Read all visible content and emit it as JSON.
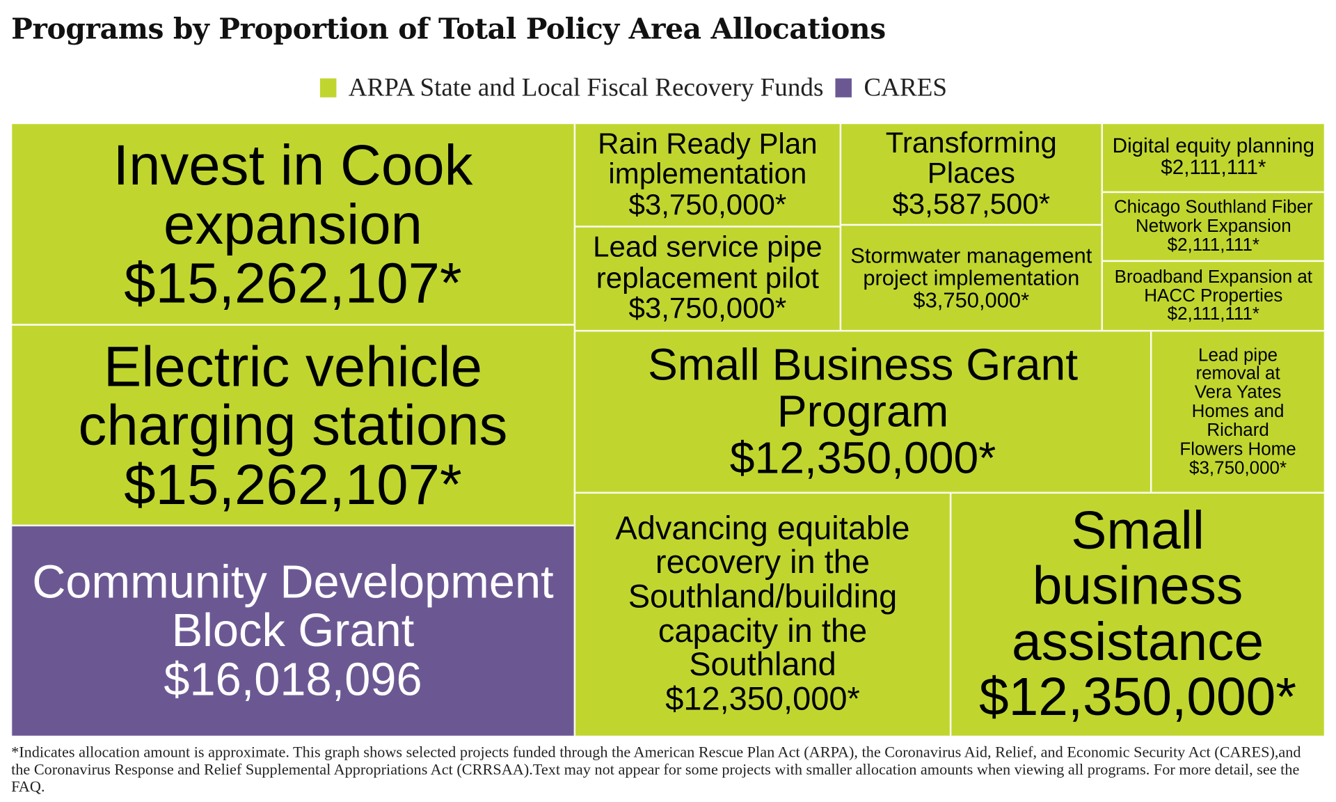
{
  "title": "Programs by Proportion of Total Policy Area Allocations",
  "legend": [
    {
      "label": "ARPA State and Local Fiscal Recovery Funds",
      "color": "#c0d62f"
    },
    {
      "label": "CARES",
      "color": "#6b5893"
    }
  ],
  "chart_data": {
    "type": "treemap",
    "title": "Programs by Proportion of Total Policy Area Allocations",
    "series": [
      {
        "name": "ARPA State and Local Fiscal Recovery Funds",
        "color": "#c0d62f"
      },
      {
        "name": "CARES",
        "color": "#6b5893"
      }
    ],
    "items": [
      {
        "label": "Invest in Cook expansion",
        "amount": "$15,262,107*",
        "value": 15262107,
        "series": "ARPA State and Local Fiscal Recovery Funds"
      },
      {
        "label": "Electric vehicle charging stations",
        "amount": "$15,262,107*",
        "value": 15262107,
        "series": "ARPA State and Local Fiscal Recovery Funds"
      },
      {
        "label": "Community Development Block Grant",
        "amount": "$16,018,096",
        "value": 16018096,
        "series": "CARES"
      },
      {
        "label": "Rain Ready Plan implementation",
        "amount": "$3,750,000*",
        "value": 3750000,
        "series": "ARPA State and Local Fiscal Recovery Funds"
      },
      {
        "label": "Lead service pipe replacement pilot",
        "amount": "$3,750,000*",
        "value": 3750000,
        "series": "ARPA State and Local Fiscal Recovery Funds"
      },
      {
        "label": "Transforming Places",
        "amount": "$3,587,500*",
        "value": 3587500,
        "series": "ARPA State and Local Fiscal Recovery Funds"
      },
      {
        "label": "Stormwater management project implementation",
        "amount": "$3,750,000*",
        "value": 3750000,
        "series": "ARPA State and Local Fiscal Recovery Funds"
      },
      {
        "label": "Digital equity planning",
        "amount": "$2,111,111*",
        "value": 2111111,
        "series": "ARPA State and Local Fiscal Recovery Funds"
      },
      {
        "label": "Chicago Southland Fiber Network Expansion",
        "amount": "$2,111,111*",
        "value": 2111111,
        "series": "ARPA State and Local Fiscal Recovery Funds"
      },
      {
        "label": "Broadband Expansion at HACC Properties",
        "amount": "$2,111,111*",
        "value": 2111111,
        "series": "ARPA State and Local Fiscal Recovery Funds"
      },
      {
        "label": "Small Business Grant Program",
        "amount": "$12,350,000*",
        "value": 12350000,
        "series": "ARPA State and Local Fiscal Recovery Funds"
      },
      {
        "label": "Lead pipe removal at Vera Yates Homes and Richard Flowers Home",
        "amount": "$3,750,000*",
        "value": 3750000,
        "series": "ARPA State and Local Fiscal Recovery Funds"
      },
      {
        "label": "Advancing equitable recovery in the Southland/building capacity in the Southland",
        "amount": "$12,350,000*",
        "value": 12350000,
        "series": "ARPA State and Local Fiscal Recovery Funds"
      },
      {
        "label": "Small business assistance",
        "amount": "$12,350,000*",
        "value": 12350000,
        "series": "ARPA State and Local Fiscal Recovery Funds"
      }
    ]
  },
  "footnote": "*Indicates allocation amount is approximate. This graph shows selected projects funded through the American Rescue Plan Act (ARPA), the Coronavirus Aid, Relief, and Economic Security Act (CARES),and the Coronavirus Response and Relief Supplemental Appropriations Act (CRRSAA).Text may not appear for some projects with smaller allocation amounts when viewing all programs. For more detail, see the FAQ."
}
